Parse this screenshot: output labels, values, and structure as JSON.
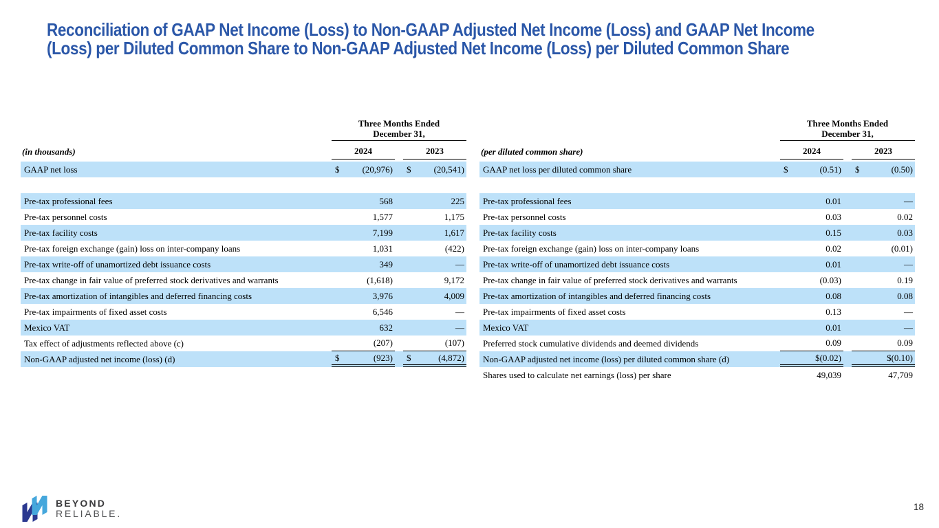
{
  "slide": {
    "title": {
      "line1": "Reconciliation of GAAP Net Income (Loss) to Non-GAAP Adjusted Net Income (Loss) and GAAP Net Income",
      "line2": "(Loss) per Diluted Common Share to Non-GAAP Adjusted Net Income (Loss) per Diluted Common Share"
    },
    "page_number": "18"
  },
  "theme": {
    "title_color": "#2B57A8",
    "row_highlight": "#BDE1F9",
    "logo_navy": "#2B3990",
    "logo_blue": "#45A7DC"
  },
  "footer": {
    "brand_word1": "BEYOND",
    "brand_word2": "RELIABLE."
  },
  "tables": [
    {
      "name": "reconciliation-in-thousands",
      "units_label": "(in thousands)",
      "period_line1": "Three Months Ended",
      "period_line2": "December 31,",
      "years": [
        "2024",
        "2023"
      ],
      "rows": [
        {
          "label": "GAAP net loss",
          "cells": [
            {
              "prefix": "$",
              "value": "(20,976)"
            },
            {
              "prefix": "$",
              "value": "(20,541)"
            }
          ],
          "shaded": true,
          "rule": "none",
          "spacer_after": true
        },
        {
          "label": "Pre-tax professional fees",
          "cells": [
            {
              "prefix": "",
              "value": "568"
            },
            {
              "prefix": "",
              "value": "225"
            }
          ],
          "shaded": true,
          "rule": "none"
        },
        {
          "label": "Pre-tax personnel costs",
          "cells": [
            {
              "prefix": "",
              "value": "1,577"
            },
            {
              "prefix": "",
              "value": "1,175"
            }
          ],
          "shaded": false,
          "rule": "none"
        },
        {
          "label": "Pre-tax facility costs",
          "cells": [
            {
              "prefix": "",
              "value": "7,199"
            },
            {
              "prefix": "",
              "value": "1,617"
            }
          ],
          "shaded": true,
          "rule": "none"
        },
        {
          "label": "Pre-tax foreign exchange (gain) loss on inter-company loans",
          "cells": [
            {
              "prefix": "",
              "value": "1,031"
            },
            {
              "prefix": "",
              "value": "(422)"
            }
          ],
          "shaded": false,
          "rule": "none"
        },
        {
          "label": "Pre-tax write-off of unamortized debt issuance costs",
          "cells": [
            {
              "prefix": "",
              "value": "349"
            },
            {
              "prefix": "",
              "value": "—"
            }
          ],
          "shaded": true,
          "rule": "none"
        },
        {
          "label": "Pre-tax change in fair value of preferred stock derivatives and warrants",
          "cells": [
            {
              "prefix": "",
              "value": "(1,618)"
            },
            {
              "prefix": "",
              "value": "9,172"
            }
          ],
          "shaded": false,
          "rule": "none"
        },
        {
          "label": "Pre-tax amortization of intangibles and deferred financing costs",
          "cells": [
            {
              "prefix": "",
              "value": "3,976"
            },
            {
              "prefix": "",
              "value": "4,009"
            }
          ],
          "shaded": true,
          "rule": "none"
        },
        {
          "label": "Pre-tax impairments of fixed asset costs",
          "cells": [
            {
              "prefix": "",
              "value": "6,546"
            },
            {
              "prefix": "",
              "value": "—"
            }
          ],
          "shaded": false,
          "rule": "none"
        },
        {
          "label": "Mexico VAT",
          "cells": [
            {
              "prefix": "",
              "value": "632"
            },
            {
              "prefix": "",
              "value": "—"
            }
          ],
          "shaded": true,
          "rule": "none"
        },
        {
          "label": "Tax effect of adjustments reflected above (c)",
          "cells": [
            {
              "prefix": "",
              "value": "(207)"
            },
            {
              "prefix": "",
              "value": "(107)"
            }
          ],
          "shaded": false,
          "rule": "single"
        },
        {
          "label": "Non-GAAP adjusted net income (loss)  (d)",
          "cells": [
            {
              "prefix": "$",
              "value": "(923)"
            },
            {
              "prefix": "$",
              "value": "(4,872)"
            }
          ],
          "shaded": true,
          "rule": "double"
        }
      ]
    },
    {
      "name": "reconciliation-per-diluted-share",
      "units_label": "(per diluted common share)",
      "period_line1": "Three Months Ended",
      "period_line2": "December 31,",
      "years": [
        "2024",
        "2023"
      ],
      "rows": [
        {
          "label": "GAAP net loss per diluted common share",
          "cells": [
            {
              "prefix": "$",
              "value": "(0.51)"
            },
            {
              "prefix": "$",
              "value": "(0.50)"
            }
          ],
          "shaded": true,
          "rule": "none",
          "spacer_after": true
        },
        {
          "label": "Pre-tax professional fees",
          "cells": [
            {
              "prefix": "",
              "value": "0.01"
            },
            {
              "prefix": "",
              "value": "—"
            }
          ],
          "shaded": true,
          "rule": "none"
        },
        {
          "label": "Pre-tax personnel costs",
          "cells": [
            {
              "prefix": "",
              "value": "0.03"
            },
            {
              "prefix": "",
              "value": "0.02"
            }
          ],
          "shaded": false,
          "rule": "none"
        },
        {
          "label": "Pre-tax facility costs",
          "cells": [
            {
              "prefix": "",
              "value": "0.15"
            },
            {
              "prefix": "",
              "value": "0.03"
            }
          ],
          "shaded": true,
          "rule": "none"
        },
        {
          "label": "Pre-tax foreign exchange (gain) loss on inter-company loans",
          "cells": [
            {
              "prefix": "",
              "value": "0.02"
            },
            {
              "prefix": "",
              "value": "(0.01)"
            }
          ],
          "shaded": false,
          "rule": "none"
        },
        {
          "label": "Pre-tax write-off of unamortized debt issuance costs",
          "cells": [
            {
              "prefix": "",
              "value": "0.01"
            },
            {
              "prefix": "",
              "value": "—"
            }
          ],
          "shaded": true,
          "rule": "none"
        },
        {
          "label": "Pre-tax change in fair value of preferred stock derivatives and warrants",
          "cells": [
            {
              "prefix": "",
              "value": "(0.03)"
            },
            {
              "prefix": "",
              "value": "0.19"
            }
          ],
          "shaded": false,
          "rule": "none"
        },
        {
          "label": "Pre-tax amortization of intangibles and deferred financing costs",
          "cells": [
            {
              "prefix": "",
              "value": "0.08"
            },
            {
              "prefix": "",
              "value": "0.08"
            }
          ],
          "shaded": true,
          "rule": "none"
        },
        {
          "label": "Pre-tax impairments of fixed asset costs",
          "cells": [
            {
              "prefix": "",
              "value": "0.13"
            },
            {
              "prefix": "",
              "value": "—"
            }
          ],
          "shaded": false,
          "rule": "none"
        },
        {
          "label": "Mexico VAT",
          "cells": [
            {
              "prefix": "",
              "value": "0.01"
            },
            {
              "prefix": "",
              "value": "—"
            }
          ],
          "shaded": true,
          "rule": "none"
        },
        {
          "label": "Preferred stock cumulative dividends and deemed dividends",
          "cells": [
            {
              "prefix": "",
              "value": "0.09"
            },
            {
              "prefix": "",
              "value": "0.09"
            }
          ],
          "shaded": false,
          "rule": "single"
        },
        {
          "label": "Non-GAAP adjusted net income (loss) per diluted common share  (d)",
          "cells": [
            {
              "prefix": "",
              "value": "$(0.02)"
            },
            {
              "prefix": "",
              "value": "$(0.10)"
            }
          ],
          "shaded": true,
          "rule": "double"
        },
        {
          "label": "Shares used to calculate net earnings (loss) per share",
          "cells": [
            {
              "prefix": "",
              "value": "49,039"
            },
            {
              "prefix": "",
              "value": "47,709"
            }
          ],
          "shaded": false,
          "rule": "none"
        }
      ]
    }
  ]
}
